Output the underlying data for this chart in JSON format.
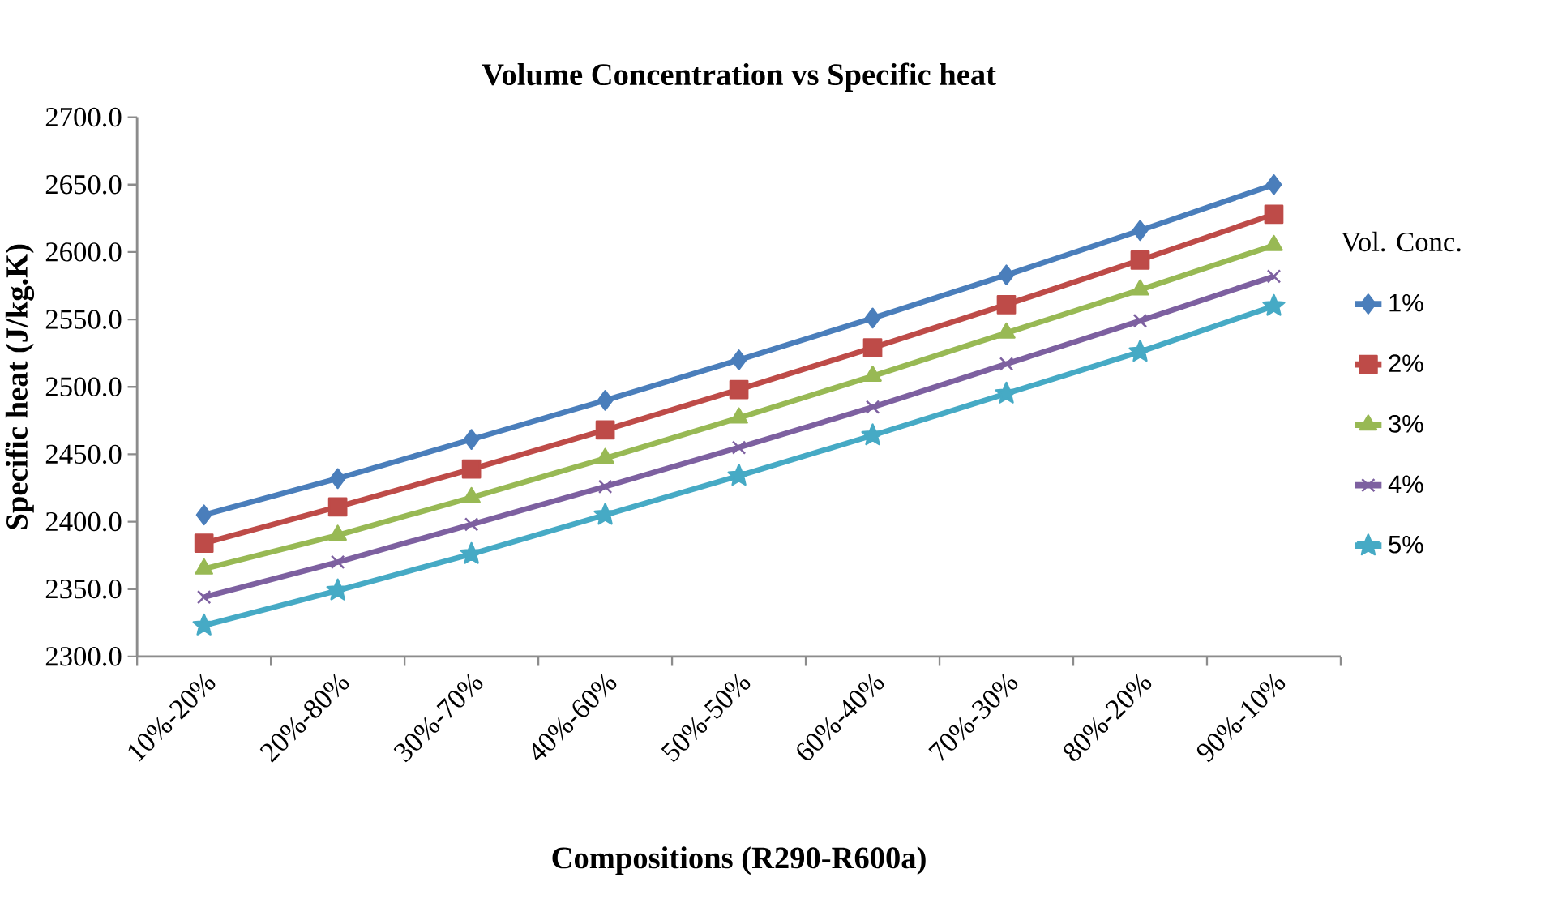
{
  "chart_data": {
    "type": "line",
    "title": "Volume Concentration vs Specific heat",
    "xlabel": "Compositions (R290-R600a)",
    "ylabel": "Specific heat (J/kg.K)",
    "legend_title": "Vol. Conc.",
    "legend": "right",
    "categories": [
      "10%-20%",
      "20%-80%",
      "30%-70%",
      "40%-60%",
      "50%-50%",
      "60%-40%",
      "70%-30%",
      "80%-20%",
      "90%-10%"
    ],
    "ylim": [
      2300,
      2700
    ],
    "yticks": [
      {
        "value": 2300,
        "label": "2300.0"
      },
      {
        "value": 2350,
        "label": "2350.0"
      },
      {
        "value": 2400,
        "label": "2400.0"
      },
      {
        "value": 2450,
        "label": "2450.0"
      },
      {
        "value": 2500,
        "label": "2500.0"
      },
      {
        "value": 2550,
        "label": "2550.0"
      },
      {
        "value": 2600,
        "label": "2600.0"
      },
      {
        "value": 2650,
        "label": "2650.0"
      },
      {
        "value": 2700,
        "label": "2700.0"
      }
    ],
    "series": [
      {
        "name": "1%",
        "color": "#4a7ebb",
        "marker": "diamond",
        "values": [
          2405,
          2432,
          2461,
          2490,
          2520,
          2551,
          2583,
          2616,
          2650
        ]
      },
      {
        "name": "2%",
        "color": "#be4b48",
        "marker": "square",
        "values": [
          2384,
          2411,
          2439,
          2468,
          2498,
          2529,
          2561,
          2594,
          2628
        ]
      },
      {
        "name": "3%",
        "color": "#98b954",
        "marker": "triangle",
        "values": [
          2365,
          2390,
          2418,
          2447,
          2477,
          2508,
          2540,
          2572,
          2605
        ]
      },
      {
        "name": "4%",
        "color": "#7d60a0",
        "marker": "cross",
        "values": [
          2344,
          2370,
          2398,
          2426,
          2455,
          2485,
          2517,
          2549,
          2582
        ]
      },
      {
        "name": "5%",
        "color": "#46aac5",
        "marker": "star",
        "values": [
          2323,
          2349,
          2376,
          2405,
          2434,
          2464,
          2495,
          2526,
          2560
        ]
      }
    ]
  }
}
